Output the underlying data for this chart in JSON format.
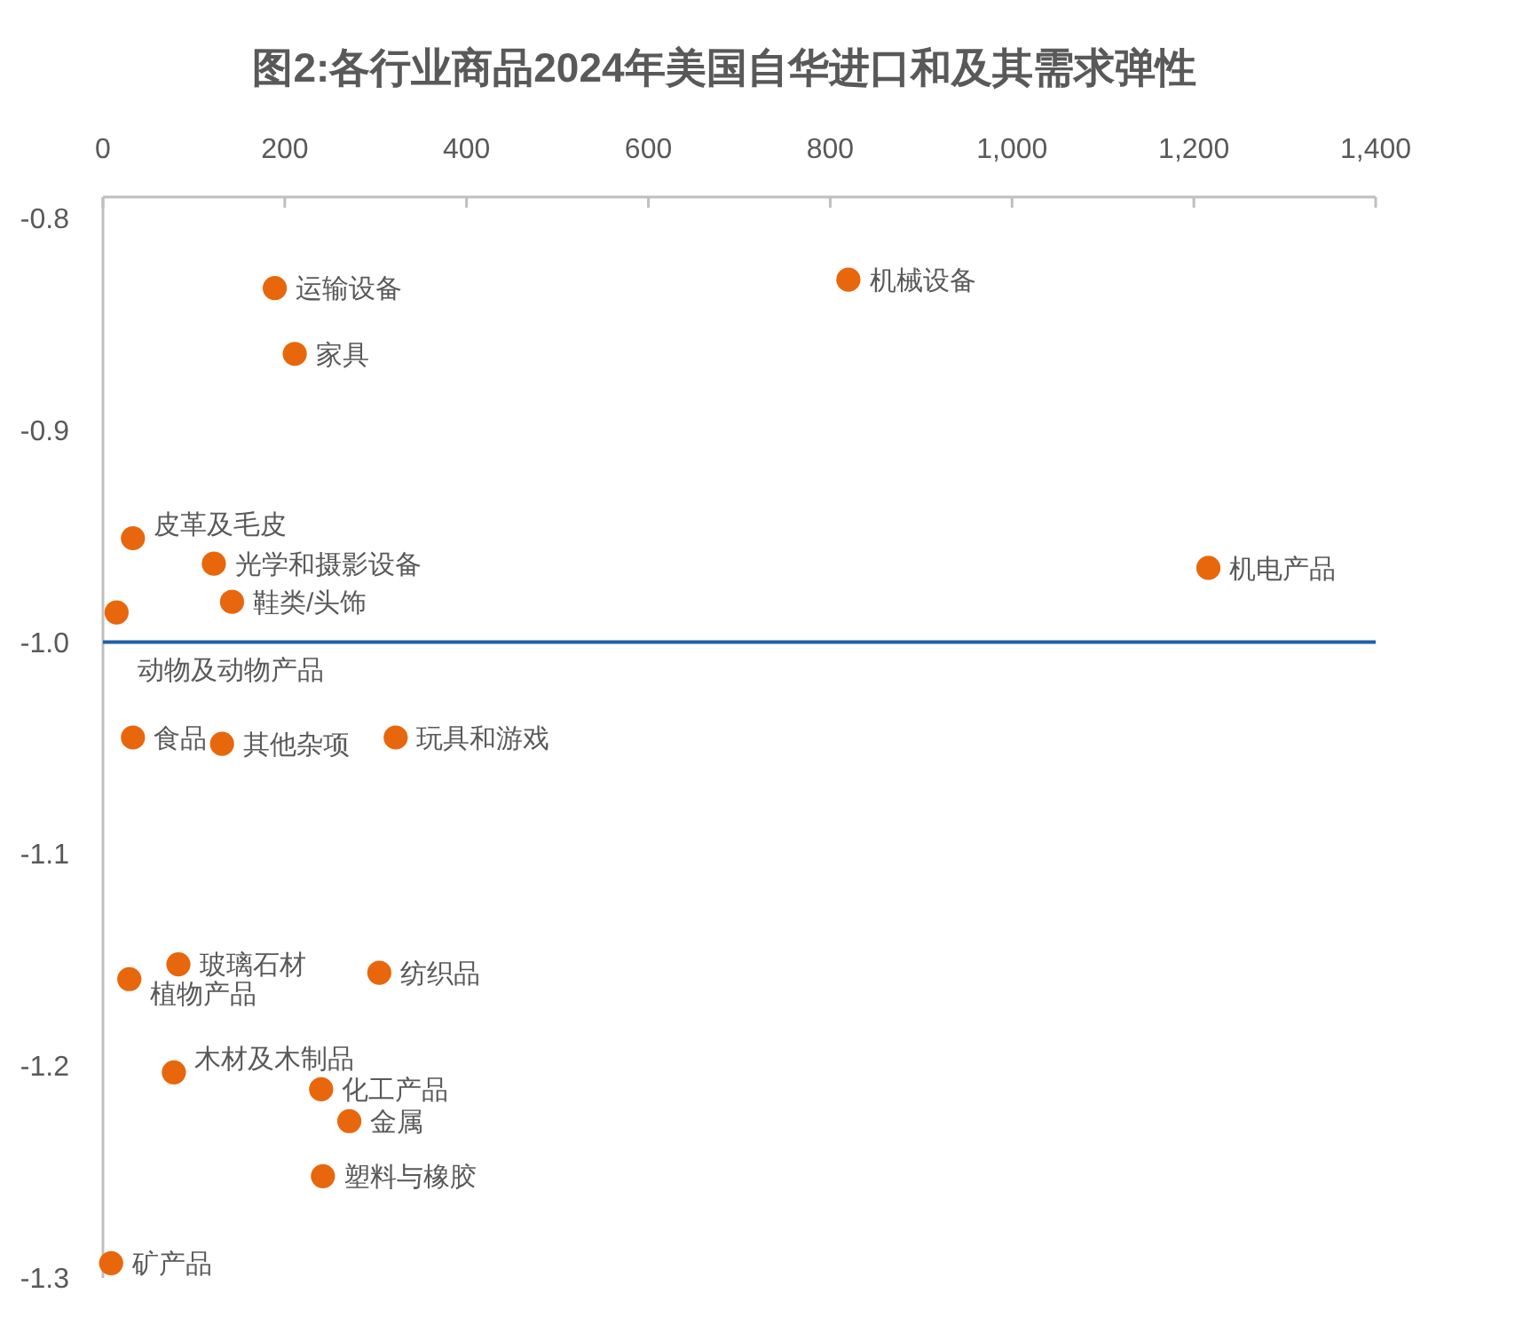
{
  "chart_data": {
    "type": "scatter",
    "title": "图2:各行业商品2024年美国自华进口和及其需求弹性",
    "x": [
      189,
      820,
      211,
      33,
      122,
      1216,
      142,
      15,
      33,
      131,
      322,
      83,
      304,
      29,
      78,
      240,
      271,
      242,
      9
    ],
    "values": [
      -0.833,
      -0.829,
      -0.864,
      -0.951,
      -0.963,
      -0.965,
      -0.981,
      -0.986,
      -1.045,
      -1.048,
      -1.045,
      -1.152,
      -1.156,
      -1.159,
      -1.203,
      -1.211,
      -1.226,
      -1.252,
      -1.293
    ],
    "color": "#e8670c",
    "marker": "circle",
    "xlim": [
      0,
      1400
    ],
    "xticks": [
      0,
      200,
      400,
      600,
      800,
      {
        "value": 1000,
        "label": "1,000"
      },
      {
        "value": 1200,
        "label": "1,200"
      },
      {
        "value": 1400,
        "label": "1,400"
      }
    ],
    "ylim": [
      -1.3,
      -0.79
    ],
    "yticks": [
      -0.8,
      -0.9,
      {
        "value": -1,
        "label": "-1.0"
      },
      -1.1,
      -1.2,
      -1.3
    ],
    "ref_lines": [
      {
        "axis": "y",
        "value": -1,
        "color": "#1f5fa6"
      }
    ],
    "annotations": [
      {
        "text": "运输设备",
        "x": 189,
        "y": -0.833
      },
      {
        "text": "机械设备",
        "x": 820,
        "y": -0.829
      },
      {
        "text": "家具",
        "x": 211,
        "y": -0.864
      },
      {
        "text": "皮革及毛皮",
        "x": 33,
        "y": -0.951
      },
      {
        "text": "光学和摄影设备",
        "x": 122,
        "y": -0.963
      },
      {
        "text": "机电产品",
        "x": 1216,
        "y": -0.965
      },
      {
        "text": "鞋类/头饰",
        "x": 142,
        "y": -0.981
      },
      {
        "text": "动物及动物产品",
        "x": 15,
        "y": -0.986
      },
      {
        "text": "食品",
        "x": 33,
        "y": -1.045
      },
      {
        "text": "其他杂项",
        "x": 131,
        "y": -1.048
      },
      {
        "text": "玩具和游戏",
        "x": 322,
        "y": -1.045
      },
      {
        "text": "玻璃石材",
        "x": 83,
        "y": -1.152
      },
      {
        "text": "纺织品",
        "x": 304,
        "y": -1.156
      },
      {
        "text": "植物产品",
        "x": 29,
        "y": -1.159
      },
      {
        "text": "木材及木制品",
        "x": 78,
        "y": -1.203
      },
      {
        "text": "化工产品",
        "x": 240,
        "y": -1.211
      },
      {
        "text": "金属",
        "x": 271,
        "y": -1.226
      },
      {
        "text": "塑料与橡胶",
        "x": 242,
        "y": -1.252
      },
      {
        "text": "矿产品",
        "x": 9,
        "y": -1.293
      }
    ]
  }
}
